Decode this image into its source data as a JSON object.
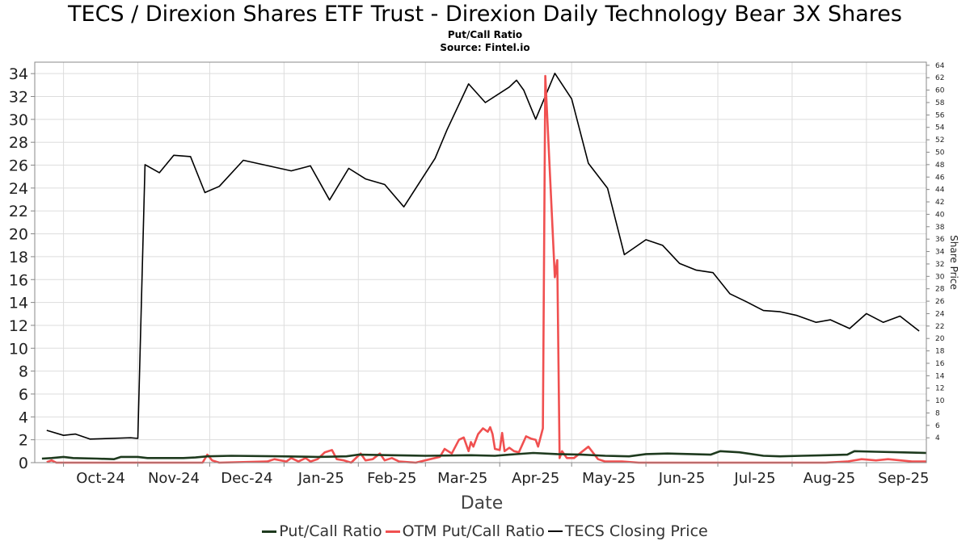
{
  "header": {
    "title": "TECS / Direxion Shares ETF Trust - Direxion Daily Technology Bear 3X Shares",
    "subtitle": "Put/Call Ratio",
    "source": "Source: Fintel.io"
  },
  "colors": {
    "put_call": "#1e3a1e",
    "otm_put_call": "#f05050",
    "closing_price": "#000000",
    "grid": "#dddddd"
  },
  "chart_data": {
    "type": "line",
    "xlabel": "Date",
    "ylabel_left": "",
    "ylabel_right": "Share Price",
    "x_range": [
      "2024-09-19",
      "2025-09-26"
    ],
    "ylim_left": [
      0,
      35
    ],
    "ylim_right": [
      0,
      64.5
    ],
    "left_ticks": [
      0,
      2,
      4,
      6,
      8,
      10,
      12,
      14,
      16,
      18,
      20,
      22,
      24,
      26,
      28,
      30,
      32,
      34
    ],
    "right_ticks": [
      4,
      6,
      8,
      10,
      12,
      14,
      16,
      18,
      20,
      22,
      24,
      26,
      28,
      30,
      32,
      34,
      36,
      38,
      40,
      42,
      44,
      46,
      48,
      50,
      52,
      54,
      56,
      58,
      60,
      62,
      64
    ],
    "x_ticks": [
      {
        "date": "2024-10-01",
        "label": "Oct-24"
      },
      {
        "date": "2024-11-01",
        "label": "Nov-24"
      },
      {
        "date": "2024-12-01",
        "label": "Dec-24"
      },
      {
        "date": "2025-01-01",
        "label": "Jan-25"
      },
      {
        "date": "2025-02-01",
        "label": "Feb-25"
      },
      {
        "date": "2025-03-01",
        "label": "Mar-25"
      },
      {
        "date": "2025-04-01",
        "label": "Apr-25"
      },
      {
        "date": "2025-05-01",
        "label": "May-25"
      },
      {
        "date": "2025-06-01",
        "label": "Jun-25"
      },
      {
        "date": "2025-07-01",
        "label": "Jul-25"
      },
      {
        "date": "2025-08-01",
        "label": "Aug-25"
      },
      {
        "date": "2025-09-01",
        "label": "Sep-25"
      }
    ],
    "grid": true,
    "legend_position": "bottom",
    "series": [
      {
        "name": "TECS Closing Price",
        "axis": "right",
        "color": "#000000",
        "points": [
          [
            "2024-09-24",
            5.2
          ],
          [
            "2024-10-01",
            4.4
          ],
          [
            "2024-10-06",
            4.6
          ],
          [
            "2024-10-12",
            3.8
          ],
          [
            "2024-10-29",
            4.0
          ],
          [
            "2024-11-01",
            3.9
          ],
          [
            "2024-11-04",
            48.0
          ],
          [
            "2024-11-10",
            46.7
          ],
          [
            "2024-11-16",
            49.5
          ],
          [
            "2024-11-23",
            49.3
          ],
          [
            "2024-11-29",
            43.5
          ],
          [
            "2024-12-05",
            44.5
          ],
          [
            "2024-12-15",
            48.7
          ],
          [
            "2025-01-04",
            47.0
          ],
          [
            "2025-01-12",
            47.8
          ],
          [
            "2025-01-20",
            42.3
          ],
          [
            "2025-01-28",
            47.4
          ],
          [
            "2025-02-04",
            45.7
          ],
          [
            "2025-02-12",
            44.8
          ],
          [
            "2025-02-20",
            41.2
          ],
          [
            "2025-03-05",
            49.0
          ],
          [
            "2025-03-10",
            53.6
          ],
          [
            "2025-03-19",
            61.0
          ],
          [
            "2025-03-26",
            58.0
          ],
          [
            "2025-04-05",
            60.5
          ],
          [
            "2025-04-08",
            61.6
          ],
          [
            "2025-04-11",
            60.0
          ],
          [
            "2025-04-16",
            55.3
          ],
          [
            "2025-04-24",
            62.7
          ],
          [
            "2025-05-01",
            58.6
          ],
          [
            "2025-05-08",
            48.2
          ],
          [
            "2025-05-16",
            44.2
          ],
          [
            "2025-05-23",
            33.5
          ],
          [
            "2025-06-01",
            35.9
          ],
          [
            "2025-06-08",
            35.0
          ],
          [
            "2025-06-15",
            32.1
          ],
          [
            "2025-06-22",
            31.0
          ],
          [
            "2025-06-29",
            30.6
          ],
          [
            "2025-07-06",
            27.2
          ],
          [
            "2025-07-13",
            25.9
          ],
          [
            "2025-07-20",
            24.5
          ],
          [
            "2025-07-27",
            24.3
          ],
          [
            "2025-08-03",
            23.7
          ],
          [
            "2025-08-11",
            22.6
          ],
          [
            "2025-08-17",
            23.0
          ],
          [
            "2025-08-25",
            21.6
          ],
          [
            "2025-09-01",
            24.0
          ],
          [
            "2025-09-08",
            22.6
          ],
          [
            "2025-09-15",
            23.6
          ],
          [
            "2025-09-23",
            21.2
          ]
        ]
      },
      {
        "name": "OTM Put/Call Ratio",
        "axis": "left",
        "color": "#f05050",
        "points": [
          [
            "2024-09-24",
            0.05
          ],
          [
            "2024-09-26",
            0.2
          ],
          [
            "2024-09-28",
            0.0
          ],
          [
            "2024-11-01",
            0.0
          ],
          [
            "2024-11-28",
            0.0
          ],
          [
            "2024-11-30",
            0.7
          ],
          [
            "2024-12-02",
            0.2
          ],
          [
            "2024-12-05",
            0.0
          ],
          [
            "2024-12-25",
            0.1
          ],
          [
            "2024-12-28",
            0.3
          ],
          [
            "2025-01-02",
            0.1
          ],
          [
            "2025-01-04",
            0.4
          ],
          [
            "2025-01-07",
            0.1
          ],
          [
            "2025-01-10",
            0.4
          ],
          [
            "2025-01-12",
            0.1
          ],
          [
            "2025-01-15",
            0.3
          ],
          [
            "2025-01-18",
            0.9
          ],
          [
            "2025-01-21",
            1.1
          ],
          [
            "2025-01-23",
            0.3
          ],
          [
            "2025-01-26",
            0.2
          ],
          [
            "2025-01-29",
            0.0
          ],
          [
            "2025-02-02",
            0.8
          ],
          [
            "2025-02-04",
            0.2
          ],
          [
            "2025-02-07",
            0.3
          ],
          [
            "2025-02-10",
            0.8
          ],
          [
            "2025-02-12",
            0.2
          ],
          [
            "2025-02-15",
            0.4
          ],
          [
            "2025-02-18",
            0.1
          ],
          [
            "2025-02-25",
            0.0
          ],
          [
            "2025-03-03",
            0.3
          ],
          [
            "2025-03-07",
            0.5
          ],
          [
            "2025-03-09",
            1.2
          ],
          [
            "2025-03-12",
            0.8
          ],
          [
            "2025-03-15",
            2.0
          ],
          [
            "2025-03-17",
            2.2
          ],
          [
            "2025-03-19",
            1.0
          ],
          [
            "2025-03-20",
            1.8
          ],
          [
            "2025-03-21",
            1.4
          ],
          [
            "2025-03-23",
            2.5
          ],
          [
            "2025-03-25",
            3.0
          ],
          [
            "2025-03-27",
            2.7
          ],
          [
            "2025-03-28",
            3.1
          ],
          [
            "2025-03-29",
            2.5
          ],
          [
            "2025-03-30",
            1.2
          ],
          [
            "2025-04-01",
            1.1
          ],
          [
            "2025-04-02",
            2.6
          ],
          [
            "2025-04-03",
            1.0
          ],
          [
            "2025-04-05",
            1.3
          ],
          [
            "2025-04-07",
            1.0
          ],
          [
            "2025-04-09",
            0.9
          ],
          [
            "2025-04-12",
            2.3
          ],
          [
            "2025-04-14",
            2.1
          ],
          [
            "2025-04-16",
            2.0
          ],
          [
            "2025-04-17",
            1.4
          ],
          [
            "2025-04-19",
            3.0
          ],
          [
            "2025-04-20",
            33.8
          ],
          [
            "2025-04-22",
            25.0
          ],
          [
            "2025-04-24",
            16.2
          ],
          [
            "2025-04-25",
            17.7
          ],
          [
            "2025-04-26",
            0.4
          ],
          [
            "2025-04-27",
            1.0
          ],
          [
            "2025-04-29",
            0.4
          ],
          [
            "2025-05-02",
            0.4
          ],
          [
            "2025-05-08",
            1.4
          ],
          [
            "2025-05-12",
            0.3
          ],
          [
            "2025-05-15",
            0.1
          ],
          [
            "2025-05-22",
            0.1
          ],
          [
            "2025-05-29",
            0.0
          ],
          [
            "2025-07-15",
            0.0
          ],
          [
            "2025-08-15",
            0.0
          ],
          [
            "2025-08-24",
            0.1
          ],
          [
            "2025-08-30",
            0.3
          ],
          [
            "2025-09-05",
            0.2
          ],
          [
            "2025-09-10",
            0.3
          ],
          [
            "2025-09-20",
            0.1
          ],
          [
            "2025-09-26",
            0.1
          ]
        ]
      },
      {
        "name": "Put/Call Ratio",
        "axis": "left",
        "color": "#1e3a1e",
        "points": [
          [
            "2024-09-22",
            0.35
          ],
          [
            "2024-09-26",
            0.4
          ],
          [
            "2024-10-01",
            0.5
          ],
          [
            "2024-10-05",
            0.4
          ],
          [
            "2024-10-15",
            0.35
          ],
          [
            "2024-10-22",
            0.3
          ],
          [
            "2024-10-25",
            0.5
          ],
          [
            "2024-11-01",
            0.5
          ],
          [
            "2024-11-05",
            0.4
          ],
          [
            "2024-11-20",
            0.4
          ],
          [
            "2024-11-25",
            0.45
          ],
          [
            "2024-11-30",
            0.55
          ],
          [
            "2024-12-10",
            0.6
          ],
          [
            "2024-12-31",
            0.55
          ],
          [
            "2025-01-15",
            0.5
          ],
          [
            "2025-01-27",
            0.55
          ],
          [
            "2025-02-01",
            0.7
          ],
          [
            "2025-02-15",
            0.65
          ],
          [
            "2025-03-01",
            0.6
          ],
          [
            "2025-03-20",
            0.65
          ],
          [
            "2025-03-30",
            0.6
          ],
          [
            "2025-04-05",
            0.7
          ],
          [
            "2025-04-15",
            0.85
          ],
          [
            "2025-04-25",
            0.75
          ],
          [
            "2025-05-05",
            0.7
          ],
          [
            "2025-05-15",
            0.6
          ],
          [
            "2025-05-25",
            0.55
          ],
          [
            "2025-06-01",
            0.75
          ],
          [
            "2025-06-10",
            0.8
          ],
          [
            "2025-06-20",
            0.75
          ],
          [
            "2025-06-28",
            0.7
          ],
          [
            "2025-07-02",
            1.0
          ],
          [
            "2025-07-10",
            0.9
          ],
          [
            "2025-07-20",
            0.6
          ],
          [
            "2025-07-27",
            0.55
          ],
          [
            "2025-08-05",
            0.6
          ],
          [
            "2025-08-15",
            0.65
          ],
          [
            "2025-08-24",
            0.7
          ],
          [
            "2025-08-27",
            1.0
          ],
          [
            "2025-09-05",
            0.95
          ],
          [
            "2025-09-15",
            0.9
          ],
          [
            "2025-09-26",
            0.85
          ]
        ]
      }
    ],
    "legend": [
      "Put/Call Ratio",
      "OTM Put/Call Ratio",
      "TECS Closing Price"
    ]
  }
}
